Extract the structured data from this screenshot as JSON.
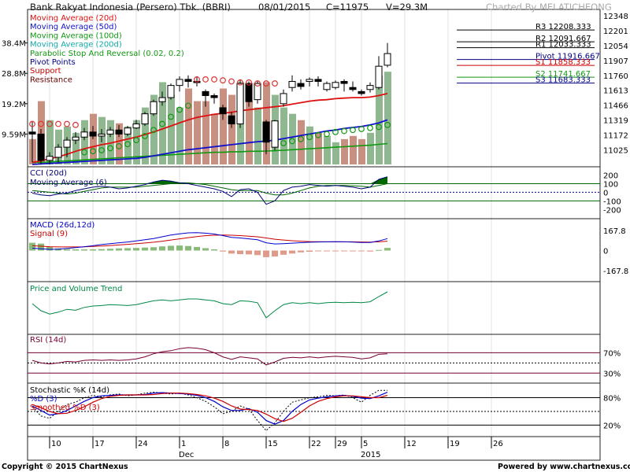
{
  "header": {
    "title": "Bank Rakyat Indonesia (Persero) Tbk. (BBRI)",
    "date": "08/01/2015",
    "close": "C=11975",
    "volume": "V=29.3M",
    "charted_by": "Charted By MELATICHEONG"
  },
  "footer": {
    "copyright": "Copyright © 2015 ChartNexus",
    "powered_by": "Powered by www.chartnexus.com"
  },
  "colors": {
    "ma20": "#dd1111",
    "ma50": "#1111cc",
    "ma100": "#119911",
    "ma200": "#11aaaa",
    "psar": "#dd3333",
    "psar_below": "#119911",
    "pivot": "#000088",
    "support": "#cc0000",
    "resistance": "#660000",
    "cci": "#000077",
    "cci_fill": "#006600",
    "macd": "#0000cc",
    "signal": "#cc0000",
    "pvt": "#008844",
    "rsi": "#770033",
    "stoch_k": "#000000",
    "stoch_d": "#0000cc",
    "stoch_sd": "#cc0000",
    "vol_up": "#90b890",
    "vol_down": "#c89080",
    "hist_up": "#88bb77",
    "hist_down": "#e09a8a"
  },
  "chart_data": {
    "type": "candlestick",
    "x_ticks": [
      {
        "i": 2,
        "label": "10"
      },
      {
        "i": 7,
        "label": "17"
      },
      {
        "i": 12,
        "label": "24"
      },
      {
        "i": 17,
        "label": "1",
        "sub": "Dec"
      },
      {
        "i": 22,
        "label": "8"
      },
      {
        "i": 27,
        "label": "15"
      },
      {
        "i": 32,
        "label": "22"
      },
      {
        "i": 35,
        "label": "29"
      },
      {
        "i": 38,
        "label": "5",
        "sub": "2015"
      },
      {
        "i": 43,
        "label": "12"
      },
      {
        "i": 48,
        "label": "19"
      },
      {
        "i": 53,
        "label": "26"
      }
    ],
    "price": {
      "ylim": [
        10880,
        12380
      ],
      "ticks": [
        12348,
        12201,
        12054,
        11907,
        11760,
        11613,
        11466,
        11319,
        11172,
        11025
      ],
      "ohlc": [
        [
          11200,
          11300,
          10900,
          11180
        ],
        [
          11180,
          11230,
          10880,
          10920
        ],
        [
          10920,
          11000,
          10880,
          10960
        ],
        [
          10950,
          11080,
          10900,
          11050
        ],
        [
          11050,
          11150,
          10950,
          11120
        ],
        [
          11120,
          11200,
          11080,
          11150
        ],
        [
          11150,
          11240,
          11120,
          11200
        ],
        [
          11200,
          11260,
          11130,
          11160
        ],
        [
          11160,
          11230,
          11100,
          11180
        ],
        [
          11180,
          11250,
          11150,
          11220
        ],
        [
          11220,
          11270,
          11150,
          11180
        ],
        [
          11180,
          11260,
          11160,
          11240
        ],
        [
          11240,
          11320,
          11230,
          11280
        ],
        [
          11280,
          11400,
          11260,
          11380
        ],
        [
          11380,
          11520,
          11360,
          11500
        ],
        [
          11500,
          11600,
          11460,
          11540
        ],
        [
          11540,
          11680,
          11520,
          11660
        ],
        [
          11660,
          11750,
          11600,
          11720
        ],
        [
          11720,
          11760,
          11640,
          11700
        ],
        [
          11700,
          11750,
          11650,
          11690
        ],
        [
          11600,
          11620,
          11450,
          11560
        ],
        [
          11560,
          11580,
          11480,
          11540
        ],
        [
          11440,
          11470,
          11320,
          11380
        ],
        [
          11360,
          11400,
          11240,
          11280
        ],
        [
          11280,
          11720,
          11240,
          11680
        ],
        [
          11680,
          11700,
          11450,
          11500
        ],
        [
          11520,
          11700,
          11480,
          11680
        ],
        [
          11300,
          11320,
          10980,
          11100
        ],
        [
          11050,
          11320,
          11020,
          11310
        ],
        [
          11480,
          11620,
          11450,
          11580
        ],
        [
          11640,
          11760,
          11600,
          11700
        ],
        [
          11680,
          11720,
          11620,
          11650
        ],
        [
          11700,
          11740,
          11650,
          11720
        ],
        [
          11720,
          11750,
          11650,
          11700
        ],
        [
          11620,
          11700,
          11600,
          11680
        ],
        [
          11640,
          11710,
          11620,
          11690
        ],
        [
          11700,
          11720,
          11600,
          11680
        ],
        [
          11640,
          11700,
          11600,
          11620
        ],
        [
          11600,
          11620,
          11560,
          11580
        ],
        [
          11620,
          11690,
          11590,
          11660
        ],
        [
          11640,
          11950,
          11620,
          11850
        ],
        [
          11860,
          12080,
          11840,
          11975
        ]
      ],
      "ma20": [
        10900,
        10915,
        10935,
        10955,
        10980,
        11010,
        11035,
        11055,
        11075,
        11090,
        11110,
        11130,
        11150,
        11175,
        11200,
        11230,
        11260,
        11290,
        11320,
        11345,
        11360,
        11375,
        11385,
        11395,
        11410,
        11420,
        11430,
        11440,
        11450,
        11460,
        11475,
        11490,
        11505,
        11515,
        11520,
        11530,
        11535,
        11540,
        11540,
        11545,
        11560,
        11580
      ],
      "ma50": [
        10880,
        10885,
        10890,
        10895,
        10900,
        10905,
        10910,
        10915,
        10920,
        10925,
        10930,
        10935,
        10940,
        10950,
        10965,
        10980,
        10995,
        11010,
        11025,
        11035,
        11045,
        11055,
        11065,
        11075,
        11085,
        11095,
        11105,
        11110,
        11120,
        11135,
        11150,
        11165,
        11180,
        11195,
        11210,
        11220,
        11235,
        11245,
        11255,
        11270,
        11290,
        11320
      ],
      "ma100": [
        10900,
        10900,
        10905,
        10910,
        10915,
        10920,
        10925,
        10930,
        10935,
        10940,
        10945,
        10950,
        10955,
        10960,
        10965,
        10970,
        10975,
        10980,
        10985,
        10990,
        10995,
        11000,
        11000,
        11005,
        11005,
        11010,
        11010,
        11012,
        11015,
        11020,
        11025,
        11030,
        11035,
        11040,
        11045,
        11050,
        11055,
        11060,
        11065,
        11070,
        11078,
        11086
      ],
      "psar": [
        [
          11280,
          0
        ],
        [
          11280,
          0
        ],
        [
          11280,
          0
        ],
        [
          11280,
          0
        ],
        [
          11280,
          0
        ],
        [
          11270,
          0
        ],
        [
          11000,
          1
        ],
        [
          11010,
          1
        ],
        [
          11020,
          1
        ],
        [
          11040,
          1
        ],
        [
          11060,
          1
        ],
        [
          11080,
          1
        ],
        [
          11120,
          1
        ],
        [
          11160,
          1
        ],
        [
          11220,
          1
        ],
        [
          11280,
          1
        ],
        [
          11350,
          1
        ],
        [
          11420,
          1
        ],
        [
          11460,
          1
        ],
        [
          11720,
          0
        ],
        [
          11720,
          0
        ],
        [
          11720,
          0
        ],
        [
          11710,
          0
        ],
        [
          11700,
          0
        ],
        [
          11690,
          0
        ],
        [
          11690,
          0
        ],
        [
          11680,
          0
        ],
        [
          11680,
          0
        ],
        [
          11680,
          0
        ],
        [
          11090,
          1
        ],
        [
          11110,
          1
        ],
        [
          11130,
          1
        ],
        [
          11150,
          1
        ],
        [
          11170,
          1
        ],
        [
          11180,
          1
        ],
        [
          11200,
          1
        ],
        [
          11210,
          1
        ],
        [
          11220,
          1
        ],
        [
          11230,
          1
        ],
        [
          11240,
          1
        ],
        [
          11250,
          1
        ],
        [
          11270,
          1
        ]
      ],
      "pivot_levels": [
        {
          "label": "R3 12208.333",
          "value": 12208.333,
          "kind": "resistance"
        },
        {
          "label": "R2 12091.667",
          "value": 12091.667,
          "kind": "resistance"
        },
        {
          "label": "R1 12033.333",
          "value": 12033.333,
          "kind": "resistance"
        },
        {
          "label": "Pivot 11916.667",
          "value": 11916.667,
          "kind": "pivot"
        },
        {
          "label": "S1 11858.333",
          "value": 11858.333,
          "kind": "support"
        },
        {
          "label": "S2 11741.667",
          "value": 11741.667,
          "kind": "s2"
        },
        {
          "label": "S3 11683.333",
          "value": 11683.333,
          "kind": "s3"
        }
      ],
      "legend": [
        {
          "text": "Moving Average (20d)",
          "color": "#dd1111"
        },
        {
          "text": "Moving Average (50d)",
          "color": "#1111cc"
        },
        {
          "text": "Moving Average (100d)",
          "color": "#119911"
        },
        {
          "text": "Moving Average (200d)",
          "color": "#11aaaa"
        },
        {
          "text": "Parabolic Stop And Reversal (0.02, 0.2)",
          "color": "#119911"
        },
        {
          "text": "Pivot Points",
          "color": "#000088"
        },
        {
          "text": "Support",
          "color": "#cc0000"
        },
        {
          "text": "Resistance",
          "color": "#660000"
        }
      ]
    },
    "volume": {
      "ylim": [
        0,
        48
      ],
      "ticks": [
        {
          "v": 38.4,
          "label": "38.4M"
        },
        {
          "v": 28.8,
          "label": "28.8M"
        },
        {
          "v": 19.2,
          "label": "19.2M"
        },
        {
          "v": 9.6,
          "label": "9.59M"
        }
      ],
      "values": [
        8,
        20,
        14,
        11,
        12,
        10,
        14,
        16,
        15,
        14,
        13,
        12,
        14,
        18,
        22,
        26,
        22,
        18,
        24,
        20,
        20,
        16,
        24,
        22,
        26,
        20,
        18,
        26,
        22,
        18,
        16,
        14,
        12,
        10,
        9,
        7,
        8,
        9,
        8,
        10,
        28,
        29.3
      ]
    },
    "cci": {
      "title": "CCI (20d)",
      "ma_label": "Moving Average (6)",
      "ylim": [
        -280,
        260
      ],
      "ticks": [
        {
          "v": 200,
          "label": "200"
        },
        {
          "v": 100,
          "label": "100"
        },
        {
          "v": 0,
          "label": "0"
        },
        {
          "v": -100,
          "label": "-100"
        },
        {
          "v": -200,
          "label": "-200"
        }
      ],
      "values": [
        -10,
        -30,
        -40,
        -20,
        -10,
        20,
        40,
        60,
        70,
        60,
        40,
        50,
        70,
        90,
        120,
        140,
        130,
        110,
        100,
        80,
        60,
        40,
        10,
        -50,
        30,
        40,
        0,
        -140,
        -100,
        20,
        60,
        70,
        90,
        80,
        70,
        80,
        70,
        60,
        40,
        60,
        150,
        180
      ],
      "ma": [
        20,
        10,
        0,
        -10,
        -20,
        -10,
        10,
        30,
        50,
        60,
        60,
        60,
        60,
        70,
        80,
        90,
        100,
        110,
        110,
        100,
        90,
        70,
        50,
        30,
        20,
        20,
        20,
        -10,
        -30,
        -30,
        -10,
        20,
        50,
        70,
        80,
        80,
        80,
        75,
        70,
        60,
        80,
        100
      ]
    },
    "macd": {
      "title": "MACD (26d,12d)",
      "signal_label": "Signal (9)",
      "ylim": [
        -240,
        240
      ],
      "ticks": [
        {
          "v": 167.8,
          "label": "167.8"
        },
        {
          "v": 0,
          "label": "0"
        },
        {
          "v": -167.8,
          "label": "-167.8"
        }
      ],
      "macd": [
        20,
        15,
        10,
        12,
        18,
        25,
        32,
        40,
        50,
        58,
        65,
        72,
        80,
        90,
        100,
        115,
        130,
        140,
        148,
        150,
        145,
        138,
        125,
        110,
        105,
        98,
        90,
        65,
        55,
        58,
        62,
        66,
        70,
        72,
        73,
        74,
        73,
        71,
        68,
        67,
        80,
        100
      ],
      "signal": [
        40,
        36,
        32,
        30,
        30,
        30,
        31,
        34,
        38,
        42,
        47,
        52,
        57,
        63,
        70,
        78,
        88,
        98,
        108,
        117,
        124,
        128,
        130,
        128,
        125,
        120,
        115,
        105,
        95,
        88,
        82,
        78,
        75,
        74,
        73,
        73,
        73,
        73,
        72,
        71,
        73,
        78
      ],
      "hist": [
        65,
        58,
        30,
        18,
        12,
        10,
        10,
        10,
        12,
        15,
        18,
        20,
        22,
        25,
        28,
        35,
        40,
        42,
        38,
        30,
        20,
        10,
        -8,
        -25,
        -30,
        -32,
        -38,
        -55,
        -50,
        -35,
        -25,
        -15,
        -10,
        -5,
        -3,
        -2,
        -1,
        -3,
        -5,
        -8,
        5,
        22
      ]
    },
    "pvt": {
      "title": "Price and Volume Trend",
      "ylim": [
        0,
        100
      ],
      "values": [
        60,
        45,
        38,
        42,
        48,
        46,
        52,
        55,
        56,
        58,
        57,
        56,
        58,
        62,
        66,
        68,
        66,
        68,
        70,
        70,
        68,
        66,
        60,
        58,
        66,
        65,
        62,
        30,
        45,
        58,
        62,
        60,
        62,
        60,
        62,
        63,
        62,
        63,
        62,
        64,
        75,
        85
      ]
    },
    "rsi": {
      "title": "RSI (14d)",
      "ylim": [
        15,
        100
      ],
      "ticks": [
        {
          "v": 70,
          "label": "70%"
        },
        {
          "v": 30,
          "label": "30%"
        }
      ],
      "values": [
        55,
        50,
        48,
        50,
        53,
        52,
        55,
        56,
        55,
        56,
        55,
        56,
        58,
        62,
        68,
        72,
        74,
        78,
        80,
        79,
        76,
        70,
        62,
        57,
        62,
        60,
        58,
        46,
        52,
        59,
        61,
        60,
        62,
        60,
        62,
        63,
        62,
        61,
        58,
        60,
        67,
        68
      ]
    },
    "stochastic": {
      "title": "Stochastic %K (14d)",
      "d_label": "%D (3)",
      "sd_label": "Smoothed %D (3)",
      "ylim": [
        0,
        105
      ],
      "ticks": [
        {
          "v": 80,
          "label": "80%"
        },
        {
          "v": 20,
          "label": "20%"
        }
      ],
      "k": [
        60,
        40,
        35,
        50,
        65,
        70,
        80,
        85,
        82,
        86,
        88,
        84,
        86,
        90,
        92,
        90,
        88,
        90,
        86,
        80,
        72,
        60,
        45,
        50,
        62,
        55,
        30,
        8,
        25,
        50,
        70,
        75,
        80,
        82,
        85,
        84,
        86,
        80,
        70,
        85,
        96,
        96
      ],
      "d": [
        62,
        52,
        42,
        45,
        52,
        62,
        72,
        80,
        84,
        85,
        86,
        86,
        86,
        87,
        90,
        91,
        90,
        89,
        88,
        85,
        80,
        72,
        60,
        52,
        52,
        56,
        48,
        30,
        22,
        30,
        50,
        65,
        75,
        79,
        82,
        84,
        85,
        83,
        79,
        78,
        84,
        92
      ],
      "sd": [
        65,
        58,
        50,
        45,
        46,
        52,
        60,
        70,
        78,
        83,
        85,
        86,
        86,
        86,
        87,
        89,
        90,
        90,
        89,
        87,
        84,
        79,
        72,
        62,
        55,
        54,
        52,
        44,
        34,
        28,
        35,
        48,
        62,
        72,
        78,
        82,
        84,
        84,
        82,
        80,
        80,
        85
      ]
    }
  }
}
